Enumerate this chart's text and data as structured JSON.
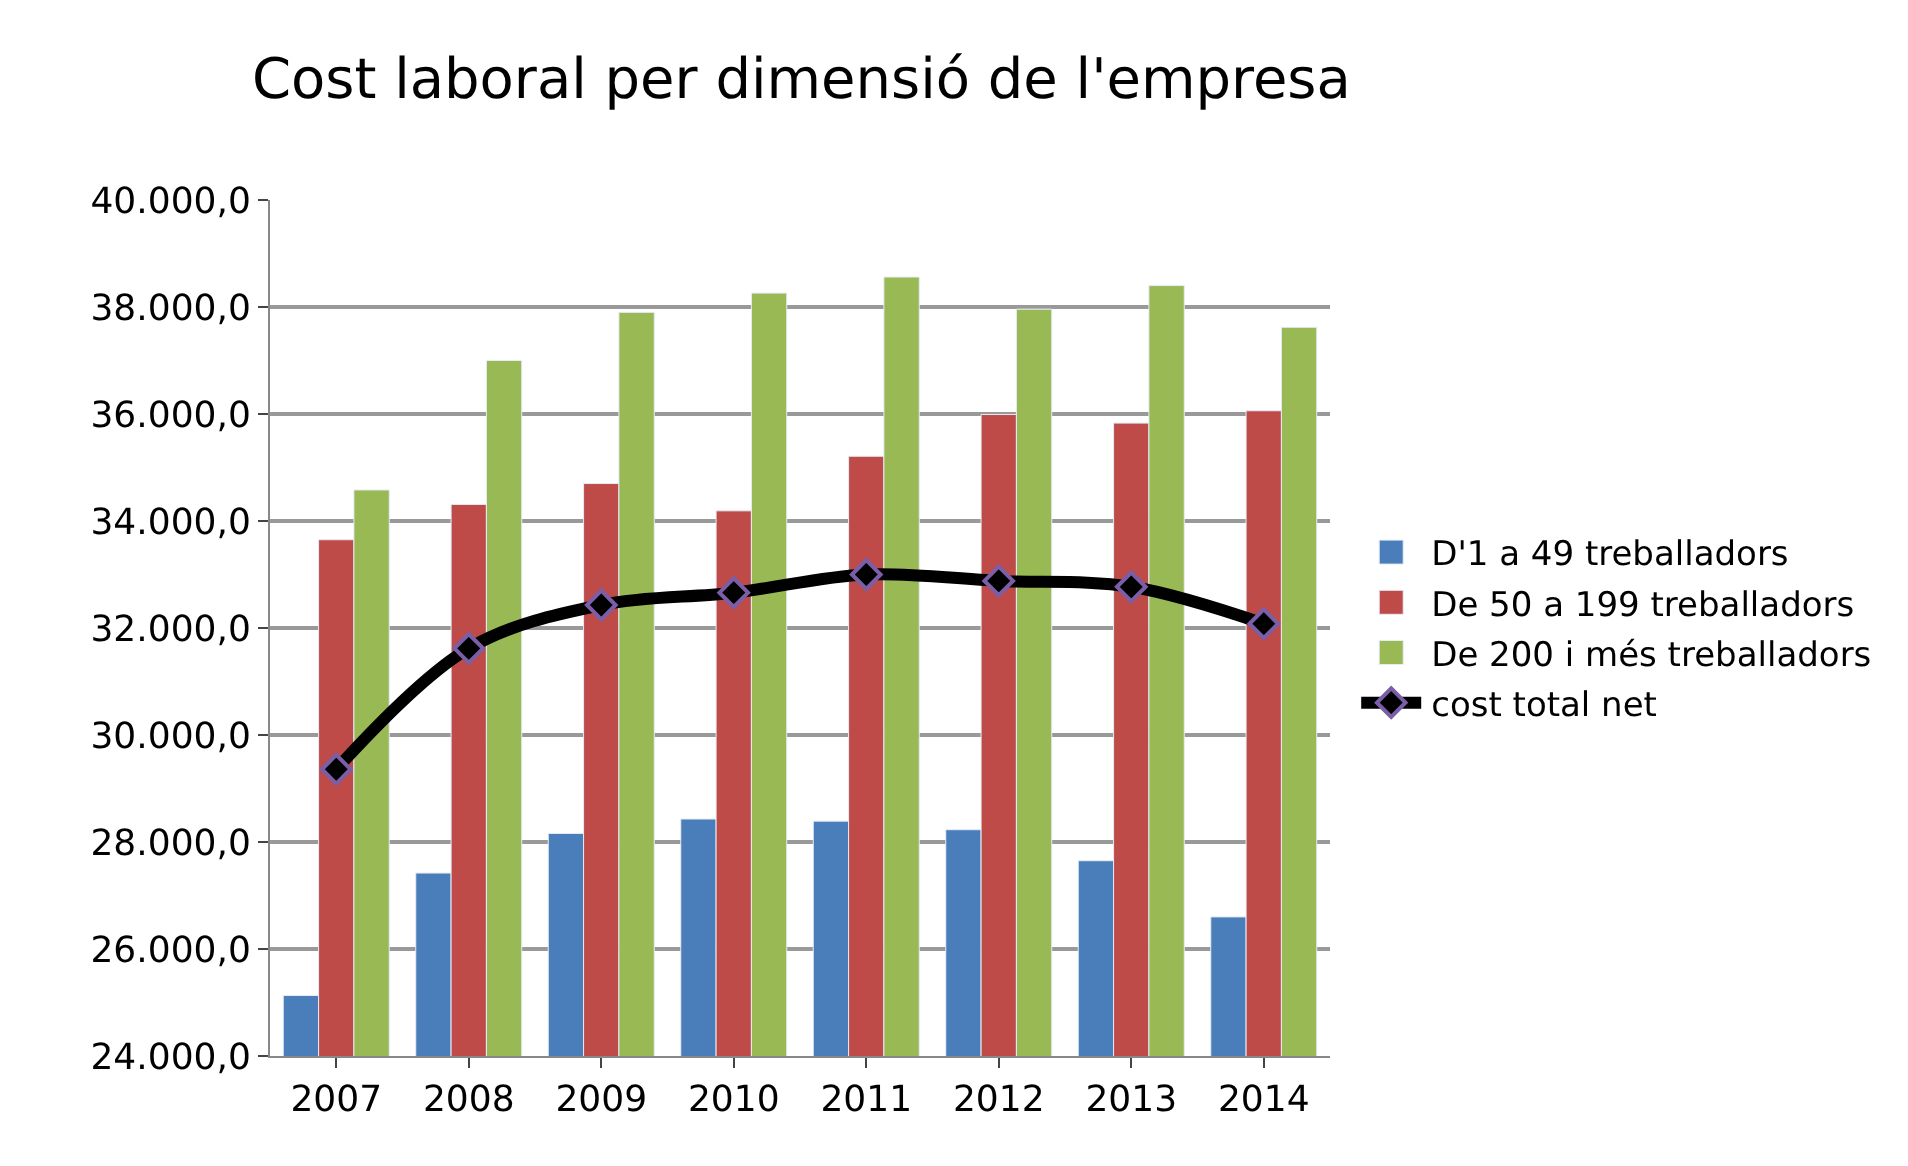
{
  "chart_data": {
    "type": "bar",
    "title": "Cost laboral per dimensió de l'empresa",
    "categories": [
      "2007",
      "2008",
      "2009",
      "2010",
      "2011",
      "2012",
      "2013",
      "2014"
    ],
    "series": [
      {
        "name": "D'1 a 49 treballadors",
        "color": "#4a7ebb",
        "values": [
          25130,
          27420,
          28160,
          28430,
          28390,
          28230,
          27650,
          26600
        ]
      },
      {
        "name": "De 50 a 199 treballadors",
        "color": "#be4b48",
        "values": [
          33650,
          34310,
          34700,
          34190,
          35210,
          35990,
          35830,
          36060
        ]
      },
      {
        "name": "De 200 i més treballadors",
        "color": "#98b954",
        "values": [
          34580,
          37000,
          37900,
          38260,
          38560,
          37960,
          38400,
          37620
        ]
      },
      {
        "name": "cost total net",
        "type": "line",
        "color": "#000000",
        "marker": "diamond",
        "line_style": "solid",
        "values": [
          29360,
          31620,
          32430,
          32660,
          33000,
          32880,
          32770,
          32080
        ]
      }
    ],
    "ylim": [
      24000,
      40000
    ],
    "yticks": [
      {
        "value": 24000,
        "label": "24.000,0"
      },
      {
        "value": 26000,
        "label": "26.000,0"
      },
      {
        "value": 28000,
        "label": "28.000,0"
      },
      {
        "value": 30000,
        "label": "30.000,0"
      },
      {
        "value": 32000,
        "label": "32.000,0"
      },
      {
        "value": 34000,
        "label": "34.000,0"
      },
      {
        "value": 36000,
        "label": "36.000,0"
      },
      {
        "value": 38000,
        "label": "38.000,0"
      },
      {
        "value": 40000,
        "label": "40.000,0"
      }
    ],
    "grid": "y",
    "legend": "right"
  }
}
